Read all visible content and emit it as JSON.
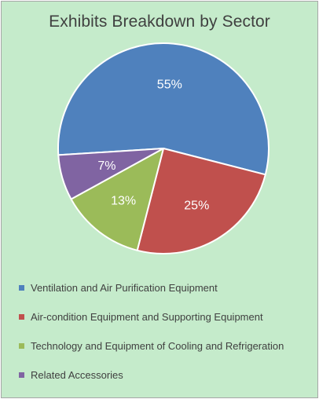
{
  "chart_data": {
    "type": "pie",
    "title": "Exhibits Breakdown by Sector",
    "categories": [
      "Ventilation and Air Purification Equipment",
      "Air-condition Equipment and Supporting Equipment",
      "Technology and Equipment of Cooling and Refrigeration",
      "Related Accessories"
    ],
    "values": [
      55,
      25,
      13,
      7
    ],
    "data_labels": [
      "55%",
      "25%",
      "13%",
      "7%"
    ],
    "colors": [
      "#4f81bd",
      "#c0504d",
      "#9bbb59",
      "#8064a2"
    ],
    "legend_position": "bottom",
    "background_color": "#c5ebcb"
  }
}
